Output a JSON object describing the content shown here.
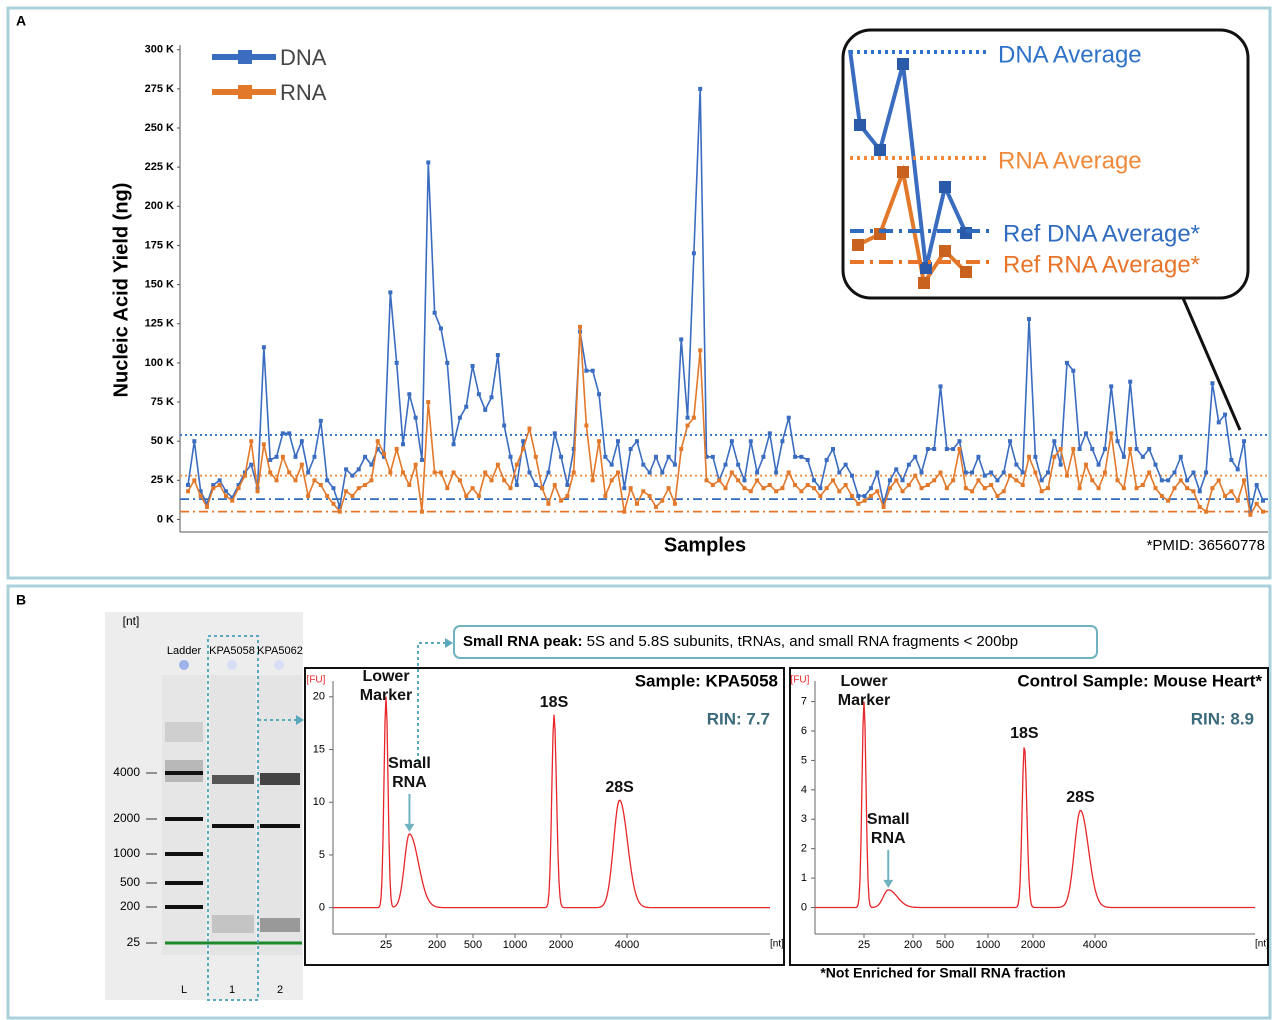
{
  "panel_labels": [
    "A",
    "B"
  ],
  "chart_data": [
    {
      "type": "line",
      "y_label": "Nucleic Acid Yield (ng)",
      "x_label": "Samples",
      "note": "*PMID: 36560778",
      "ylim": [
        -8000,
        303000
      ],
      "yticks": [
        {
          "value": 0,
          "label": "0 K"
        },
        {
          "value": 25000,
          "label": "25 K"
        },
        {
          "value": 50000,
          "label": "50 K"
        },
        {
          "value": 75000,
          "label": "75 K"
        },
        {
          "value": 100000,
          "label": "100 K"
        },
        {
          "value": 125000,
          "label": "125 K"
        },
        {
          "value": 150000,
          "label": "150 K"
        },
        {
          "value": 175000,
          "label": "175 K"
        },
        {
          "value": 200000,
          "label": "200 K"
        },
        {
          "value": 225000,
          "label": "225 K"
        },
        {
          "value": 250000,
          "label": "250 K"
        },
        {
          "value": 275000,
          "label": "275 K"
        },
        {
          "value": 300000,
          "label": "300 K"
        }
      ],
      "legend": "upper left",
      "series": [
        {
          "name": "DNA",
          "color": "#3a6cc0",
          "values": [
            22000,
            50000,
            18000,
            10000,
            22000,
            25000,
            18000,
            14000,
            22000,
            30000,
            35000,
            20000,
            110000,
            38000,
            40000,
            55000,
            55000,
            40000,
            50000,
            30000,
            40000,
            63000,
            25000,
            20000,
            8000,
            32000,
            28000,
            32000,
            40000,
            35000,
            45000,
            40000,
            145000,
            100000,
            48000,
            80000,
            65000,
            38000,
            228000,
            132000,
            122000,
            100000,
            48000,
            65000,
            72000,
            98000,
            80000,
            70000,
            78000,
            105000,
            60000,
            40000,
            22000,
            50000,
            30000,
            22000,
            20000,
            30000,
            55000,
            40000,
            22000,
            45000,
            120000,
            95000,
            95000,
            80000,
            40000,
            35000,
            50000,
            20000,
            45000,
            50000,
            35000,
            30000,
            40000,
            30000,
            40000,
            35000,
            115000,
            65000,
            170000,
            275000,
            40000,
            40000,
            25000,
            35000,
            50000,
            35000,
            25000,
            50000,
            30000,
            40000,
            55000,
            30000,
            50000,
            65000,
            40000,
            40000,
            38000,
            25000,
            20000,
            38000,
            45000,
            30000,
            35000,
            28000,
            15000,
            15000,
            20000,
            30000,
            10000,
            25000,
            32000,
            25000,
            35000,
            40000,
            30000,
            45000,
            45000,
            85000,
            45000,
            45000,
            50000,
            30000,
            30000,
            40000,
            28000,
            30000,
            25000,
            30000,
            50000,
            35000,
            30000,
            128000,
            40000,
            25000,
            30000,
            50000,
            35000,
            100000,
            95000,
            45000,
            55000,
            45000,
            35000,
            45000,
            85000,
            50000,
            40000,
            88000,
            45000,
            40000,
            45000,
            35000,
            25000,
            25000,
            30000,
            40000,
            25000,
            30000,
            18000,
            30000,
            87000,
            62000,
            67000,
            38000,
            32000,
            50000,
            5000,
            22000,
            12000
          ]
        },
        {
          "name": "RNA",
          "color": "#e2782a",
          "values": [
            18000,
            25000,
            15000,
            8000,
            20000,
            22000,
            15000,
            12000,
            20000,
            28000,
            50000,
            18000,
            48000,
            30000,
            25000,
            40000,
            30000,
            25000,
            35000,
            15000,
            25000,
            22000,
            15000,
            10000,
            5000,
            18000,
            15000,
            20000,
            22000,
            25000,
            50000,
            42000,
            30000,
            45000,
            30000,
            22000,
            35000,
            5000,
            75000,
            30000,
            30000,
            20000,
            30000,
            25000,
            15000,
            20000,
            15000,
            30000,
            25000,
            35000,
            25000,
            20000,
            35000,
            45000,
            58000,
            40000,
            20000,
            10000,
            22000,
            12000,
            15000,
            30000,
            123000,
            60000,
            25000,
            50000,
            15000,
            25000,
            30000,
            5000,
            20000,
            10000,
            18000,
            15000,
            8000,
            12000,
            20000,
            10000,
            45000,
            60000,
            65000,
            108000,
            25000,
            22000,
            25000,
            20000,
            30000,
            25000,
            20000,
            18000,
            25000,
            20000,
            22000,
            18000,
            20000,
            30000,
            22000,
            18000,
            22000,
            20000,
            15000,
            20000,
            25000,
            18000,
            22000,
            15000,
            10000,
            12000,
            15000,
            18000,
            8000,
            20000,
            25000,
            18000,
            22000,
            28000,
            20000,
            22000,
            25000,
            30000,
            20000,
            25000,
            45000,
            20000,
            18000,
            25000,
            20000,
            22000,
            15000,
            18000,
            28000,
            25000,
            22000,
            40000,
            30000,
            18000,
            20000,
            40000,
            45000,
            28000,
            45000,
            20000,
            35000,
            25000,
            20000,
            30000,
            55000,
            25000,
            20000,
            45000,
            20000,
            22000,
            30000,
            20000,
            15000,
            12000,
            20000,
            25000,
            20000,
            18000,
            8000,
            5000,
            20000,
            25000,
            15000,
            18000,
            12000,
            25000,
            3000,
            10000,
            5000
          ]
        }
      ],
      "reference_lines": [
        {
          "name": "DNA Average",
          "value": 54000,
          "color": "#2f73c9",
          "style": "dotted"
        },
        {
          "name": "RNA Average",
          "value": 28000,
          "color": "#f08a3a",
          "style": "dotted"
        },
        {
          "name": "Ref DNA Average*",
          "value": 13000,
          "color": "#2f6bbf",
          "style": "dash-dot"
        },
        {
          "name": "Ref RNA Average*",
          "value": 5000,
          "color": "#e8742a",
          "style": "dash-dot"
        }
      ]
    },
    {
      "type": "electropherogram",
      "title": "Sample: KPA5058",
      "rin": "RIN: 7.7",
      "y_label": "[FU]",
      "x_label": "[nt]",
      "color": "#e8262a",
      "ylim": [
        -2.5,
        21.5
      ],
      "yticks": [
        0,
        5,
        10,
        15,
        20
      ],
      "xticks": [
        25,
        200,
        500,
        1000,
        2000,
        4000
      ],
      "peaks": [
        {
          "label": "Lower Marker",
          "x": 25,
          "value": 20
        },
        {
          "label": "Small RNA",
          "x": 65,
          "value": 7
        },
        {
          "label": "18S",
          "x": 1800,
          "value": 18.3
        },
        {
          "label": "28S",
          "x": 3700,
          "value": 10.2
        }
      ]
    },
    {
      "type": "electropherogram",
      "title": "Control Sample: Mouse Heart*",
      "rin": "RIN: 8.9",
      "y_label": "[FU]",
      "x_label": "[nt]",
      "color": "#e8262a",
      "ylim": [
        -0.9,
        7.7
      ],
      "yticks": [
        0,
        1,
        2,
        3,
        4,
        5,
        6,
        7
      ],
      "xticks": [
        25,
        200,
        500,
        1000,
        2000,
        4000
      ],
      "peaks": [
        {
          "label": "Lower Marker",
          "x": 25,
          "value": 7
        },
        {
          "label": "Small RNA",
          "x": 70,
          "value": 0.6
        },
        {
          "label": "18S",
          "x": 1750,
          "value": 5.5
        },
        {
          "label": "28S",
          "x": 3400,
          "value": 3.3
        }
      ]
    }
  ],
  "gel": {
    "unit": "[nt]",
    "lanes": [
      "Ladder",
      "KPA5058",
      "KPA5062"
    ],
    "lane_numbers": [
      "L",
      "1",
      "2"
    ],
    "ticks": [
      4000,
      2000,
      1000,
      500,
      200,
      25
    ]
  },
  "callout": {
    "title": "Small RNA peak:",
    "text": "5S and 5.8S subunits, tRNAs, and small RNA fragments < 200bp"
  },
  "footnote": "*Not Enriched for Small RNA fraction"
}
